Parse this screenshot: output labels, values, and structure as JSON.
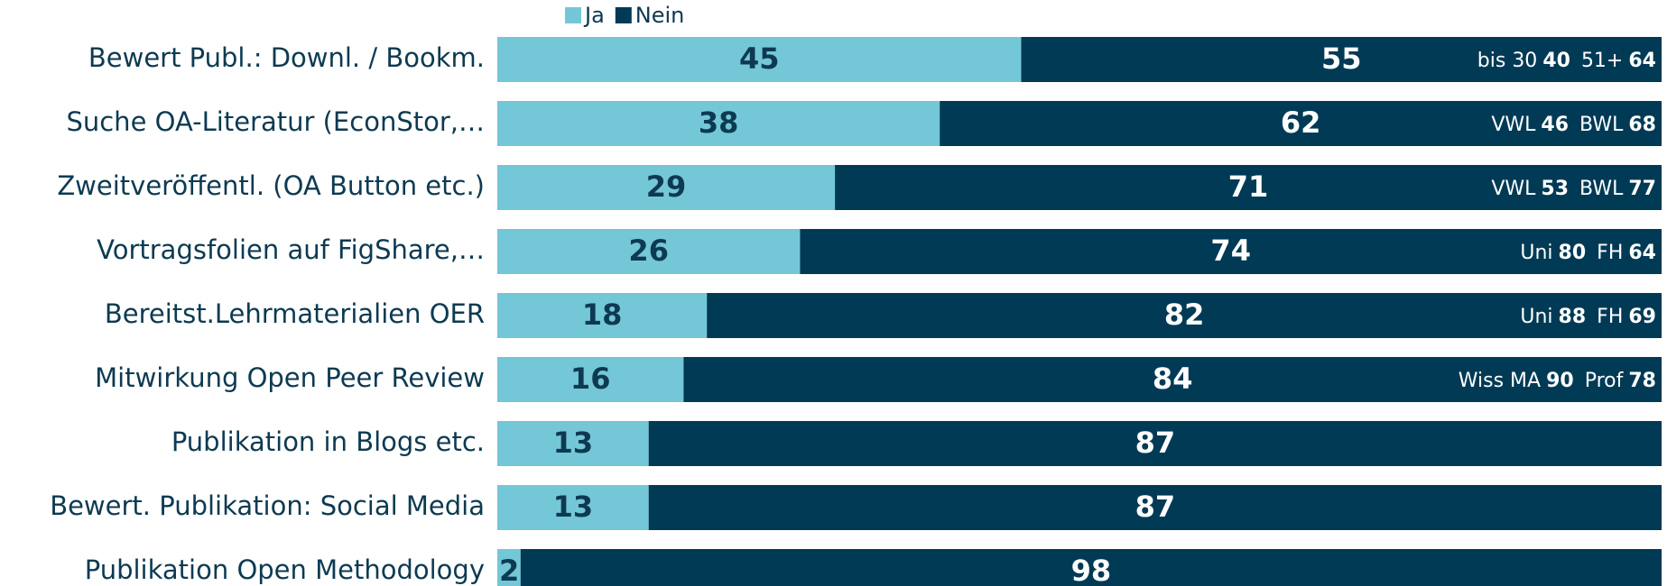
{
  "chart_data": {
    "type": "stacked-bar-horizontal",
    "categories": [
      "Bewert Publ.: Downl. / Bookm.",
      "Suche OA-Literatur (EconStor,…",
      "Zweitveröffentl. (OA Button etc.)",
      "Vortragsfolien auf FigShare,…",
      "Bereitst.Lehrmaterialien OER",
      "Mitwirkung Open Peer Review",
      "Publikation in Blogs etc.",
      "Bewert. Publikation: Social Media",
      "Publikation Open Methodology"
    ],
    "series": [
      {
        "name": "Ja",
        "color": "#74c7d6",
        "label_color": "#0d3a52",
        "values": [
          45,
          38,
          29,
          26,
          18,
          16,
          13,
          13,
          2
        ]
      },
      {
        "name": "Nein",
        "color": "#003a55",
        "label_color": "#ffffff",
        "values": [
          55,
          62,
          71,
          74,
          82,
          84,
          87,
          87,
          98
        ]
      }
    ],
    "annotations": [
      [
        {
          "label": "bis 30",
          "value": 40
        },
        {
          "label": "51+",
          "value": 64
        }
      ],
      [
        {
          "label": "VWL",
          "value": 46
        },
        {
          "label": "BWL",
          "value": 68
        }
      ],
      [
        {
          "label": "VWL",
          "value": 53
        },
        {
          "label": "BWL",
          "value": 77
        }
      ],
      [
        {
          "label": "Uni",
          "value": 80
        },
        {
          "label": "FH",
          "value": 64
        }
      ],
      [
        {
          "label": "Uni",
          "value": 88
        },
        {
          "label": "FH",
          "value": 69
        }
      ],
      [
        {
          "label": "Wiss MA",
          "value": 90
        },
        {
          "label": "Prof",
          "value": 78
        }
      ],
      null,
      null,
      null
    ],
    "legend": "top"
  }
}
